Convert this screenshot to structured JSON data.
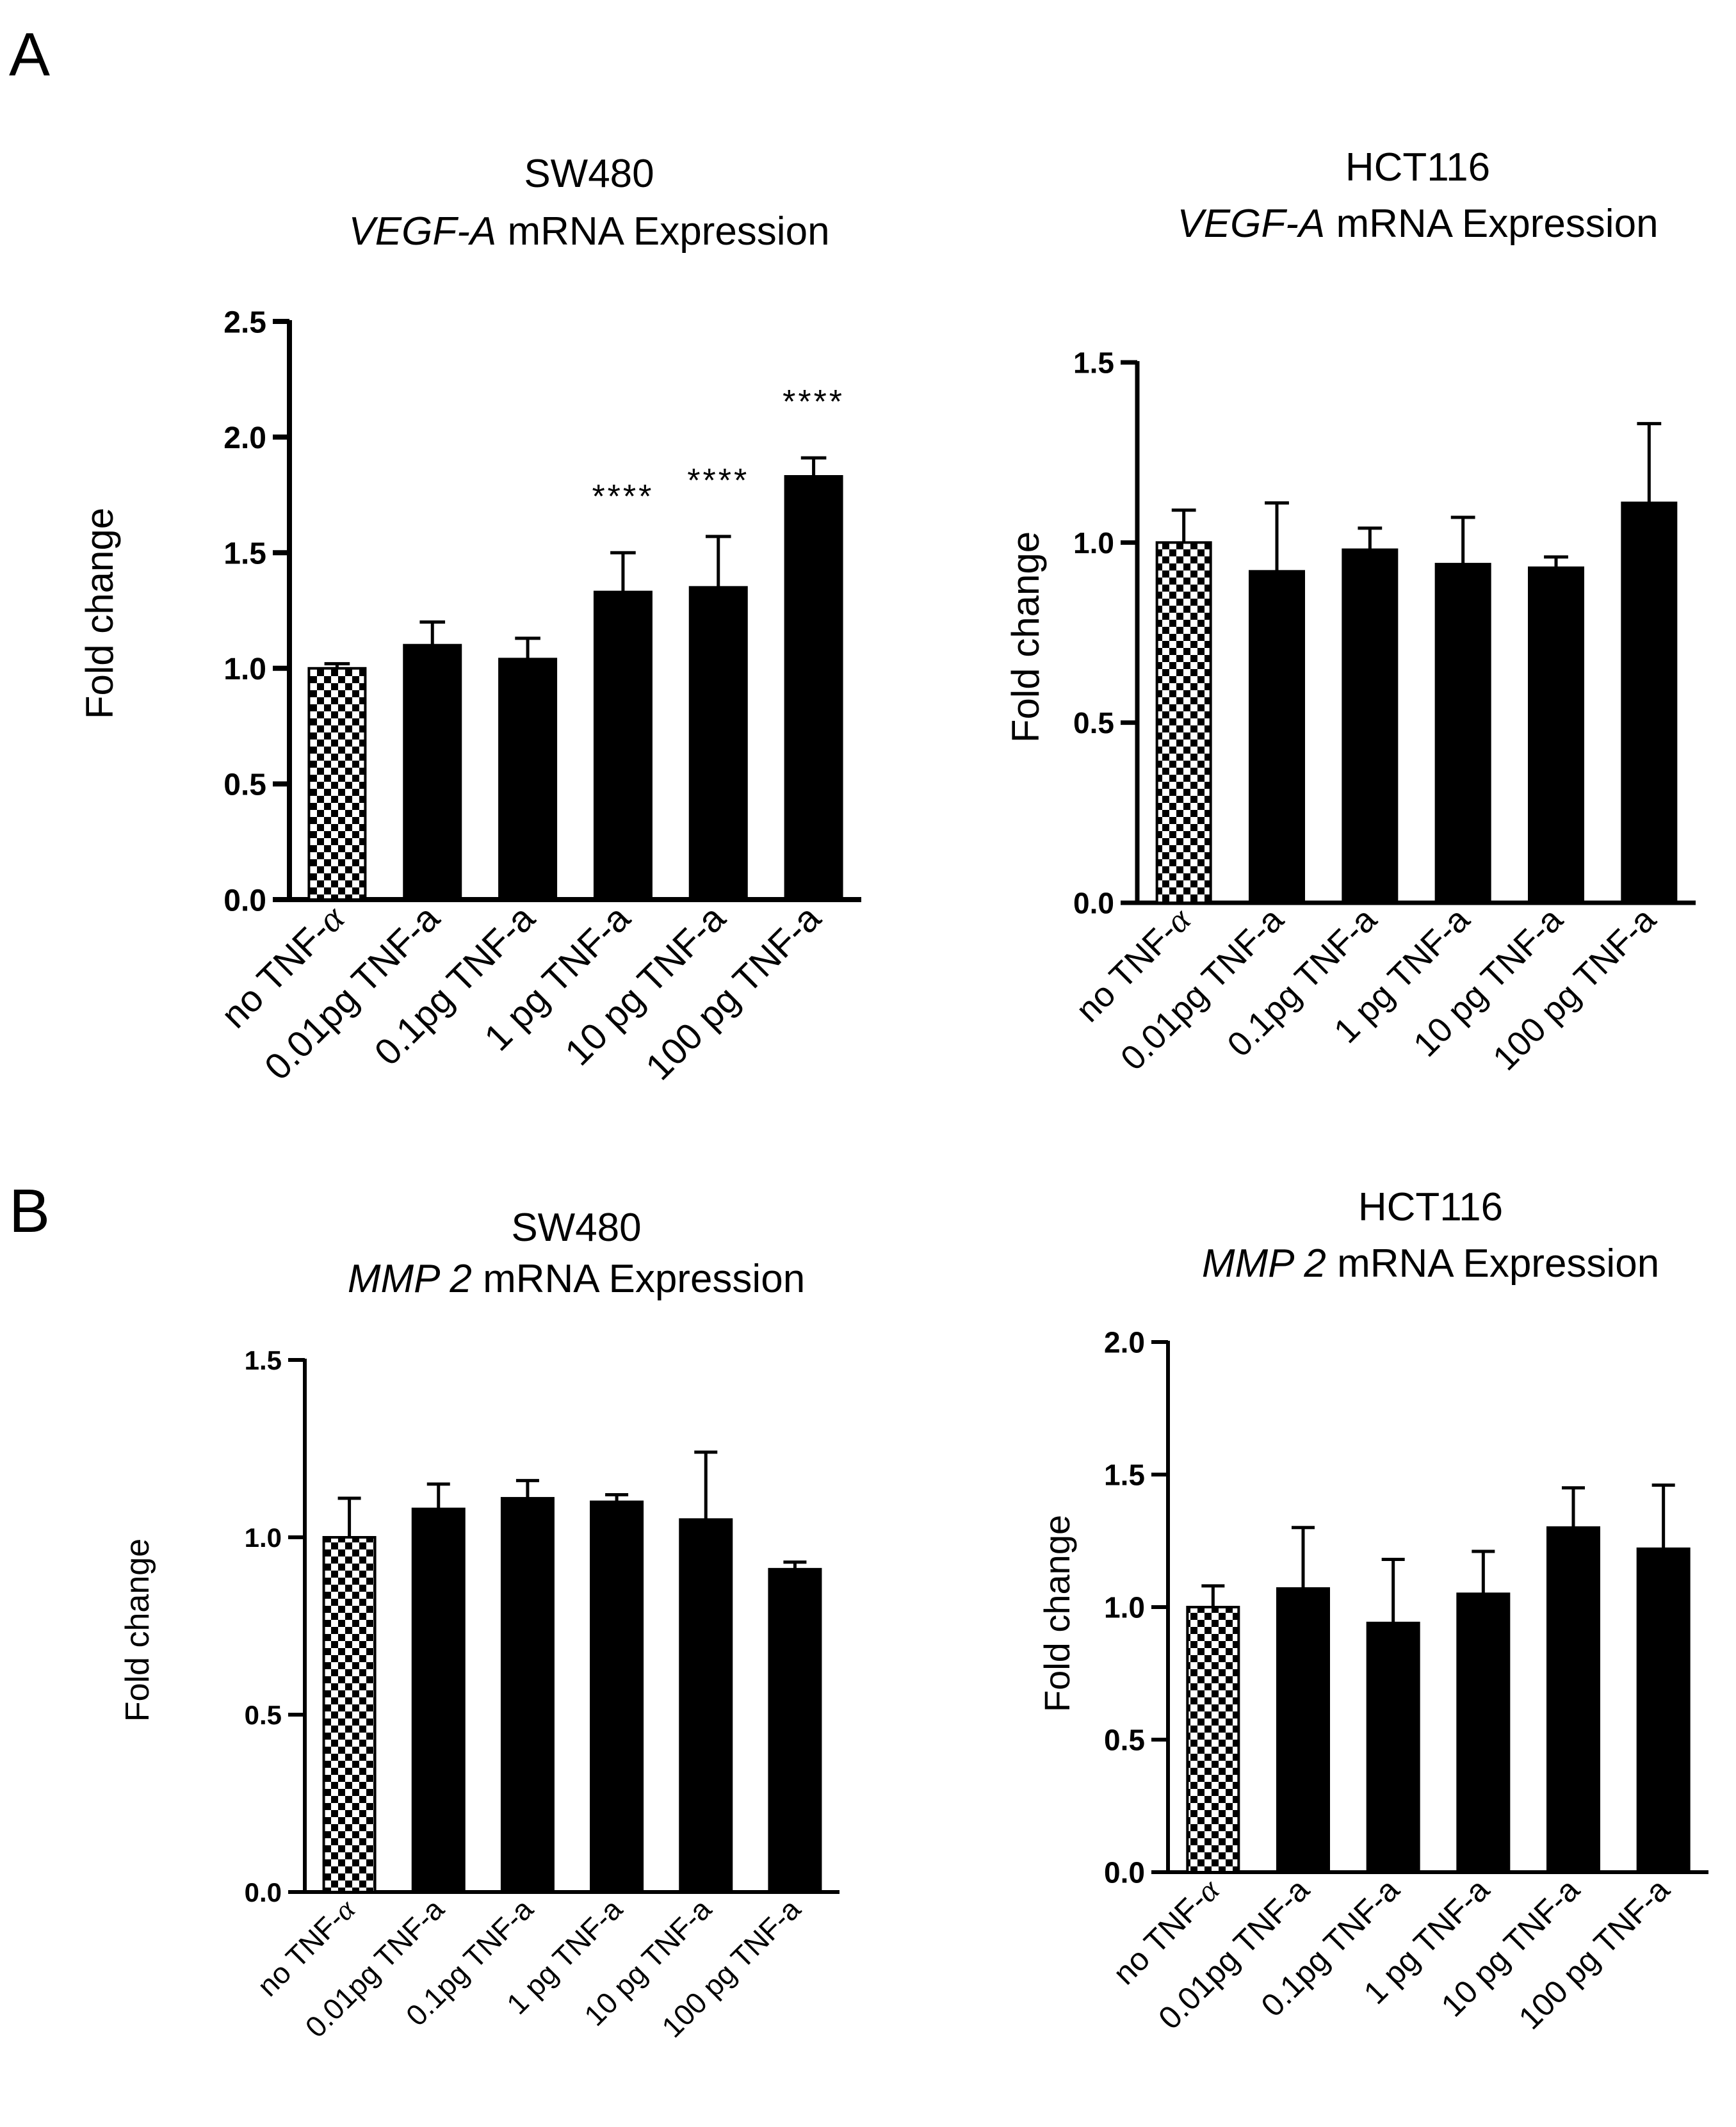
{
  "panel_labels": [
    "A",
    "B"
  ],
  "chart_data": [
    {
      "type": "bar",
      "title": "SW480",
      "subtitle_italic": "VEGF-A",
      "subtitle_rest": " mRNA Expression",
      "xlabel": "",
      "ylabel": "Fold change",
      "ylim": [
        0,
        2.5
      ],
      "yticks": [
        "0.0",
        "0.5",
        "1.0",
        "1.5",
        "2.0",
        "2.5"
      ],
      "categories": [
        "no TNF-α",
        "0.01pg TNF-a",
        "0.1pg TNF-a",
        "1 pg TNF-a",
        "10 pg TNF-a",
        "100 pg TNF-a"
      ],
      "values": [
        1.0,
        1.1,
        1.04,
        1.33,
        1.35,
        1.83
      ],
      "errors": [
        0.02,
        0.1,
        0.09,
        0.17,
        0.22,
        0.08
      ],
      "significance": [
        "",
        "",
        "",
        "****",
        "****",
        "****"
      ],
      "patterns": [
        "checker",
        "solid",
        "solid",
        "solid",
        "solid",
        "solid"
      ]
    },
    {
      "type": "bar",
      "title": "HCT116",
      "subtitle_italic": "VEGF-A",
      "subtitle_rest": " mRNA Expression",
      "xlabel": "",
      "ylabel": "Fold change",
      "ylim": [
        0,
        1.5
      ],
      "yticks": [
        "0.0",
        "0.5",
        "1.0",
        "1.5"
      ],
      "categories": [
        "no TNF-α",
        "0.01pg TNF-a",
        "0.1pg TNF-a",
        "1 pg TNF-a",
        "10 pg TNF-a",
        "100 pg TNF-a"
      ],
      "values": [
        1.0,
        0.92,
        0.98,
        0.94,
        0.93,
        1.11
      ],
      "errors": [
        0.09,
        0.19,
        0.06,
        0.13,
        0.03,
        0.22
      ],
      "significance": [
        "",
        "",
        "",
        "",
        "",
        ""
      ],
      "patterns": [
        "checker",
        "solid",
        "solid",
        "solid",
        "solid",
        "solid"
      ]
    },
    {
      "type": "bar",
      "title": "SW480",
      "subtitle_italic": "MMP 2",
      "subtitle_rest": " mRNA Expression",
      "xlabel": "",
      "ylabel": "Fold change",
      "ylim": [
        0,
        1.5
      ],
      "yticks": [
        "0.0",
        "0.5",
        "1.0",
        "1.5"
      ],
      "categories": [
        "no TNF-α",
        "0.01pg TNF-a",
        "0.1pg TNF-a",
        "1 pg TNF-a",
        "10 pg TNF-a",
        "100 pg TNF-a"
      ],
      "values": [
        1.0,
        1.08,
        1.11,
        1.1,
        1.05,
        0.91
      ],
      "errors": [
        0.11,
        0.07,
        0.05,
        0.02,
        0.19,
        0.02
      ],
      "significance": [
        "",
        "",
        "",
        "",
        "",
        ""
      ],
      "patterns": [
        "checker",
        "solid",
        "solid",
        "solid",
        "solid",
        "solid"
      ]
    },
    {
      "type": "bar",
      "title": "HCT116",
      "subtitle_italic": "MMP 2",
      "subtitle_rest": " mRNA  Expression",
      "xlabel": "",
      "ylabel": "Fold change",
      "ylim": [
        0,
        2.0
      ],
      "yticks": [
        "0.0",
        "0.5",
        "1.0",
        "1.5",
        "2.0"
      ],
      "categories": [
        "no TNF-α",
        "0.01pg TNF-a",
        "0.1pg TNF-a",
        "1 pg TNF-a",
        "10 pg TNF-a",
        "100 pg TNF-a"
      ],
      "values": [
        1.0,
        1.07,
        0.94,
        1.05,
        1.3,
        1.22
      ],
      "errors": [
        0.08,
        0.23,
        0.24,
        0.16,
        0.15,
        0.24
      ],
      "significance": [
        "",
        "",
        "",
        "",
        "",
        ""
      ],
      "patterns": [
        "checker",
        "solid",
        "solid",
        "solid",
        "solid",
        "solid"
      ]
    }
  ]
}
